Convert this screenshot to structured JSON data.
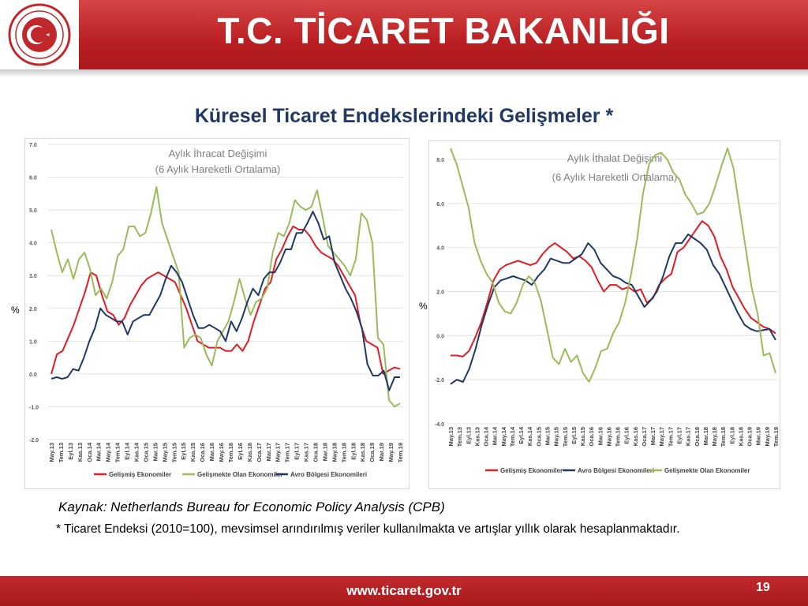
{
  "header": {
    "title": "T.C. TİCARET BAKANLIĞI"
  },
  "subtitle": "Küresel Ticaret Endekslerindeki Gelişmeler *",
  "colors": {
    "red": "#e31b23",
    "green": "#9bbb59",
    "navy": "#1f3864",
    "header": "#c0282b"
  },
  "chart_data": [
    {
      "type": "line",
      "title": "Aylık İhracat Değişimi",
      "subtitle": "(6 Aylık Hareketli Ortalama)",
      "ylabel": "%",
      "ylim": [
        -2,
        7
      ],
      "yticks": [
        "7.0",
        "6.0",
        "5.0",
        "4.0",
        "3.0",
        "2.0",
        "1.0",
        "0.0",
        "-1.0",
        "-2.0"
      ],
      "x_tick_labels": [
        "May.13",
        "Tem.13",
        "Eyl.13",
        "Kas.13",
        "Oca.14",
        "Mar.14",
        "May.14",
        "Tem.14",
        "Eyl.14",
        "Kas.14",
        "Oca.15",
        "Mar.15",
        "May.15",
        "Tem.15",
        "Eyl.15",
        "Kas.15",
        "Oca.16",
        "Mar.16",
        "May.16",
        "Tem.16",
        "Eyl.16",
        "Kas.16",
        "Oca.17",
        "Mar.17",
        "May.17",
        "Tem.17",
        "Eyl.17",
        "Kas.17",
        "Oca.18",
        "Mar.18",
        "May.18",
        "Tem.18",
        "Eyl.18",
        "Kas.18",
        "Oca.19",
        "Mar.19",
        "May.19",
        "Tem.19"
      ],
      "series": [
        {
          "name": "Gelişmiş Ekonomiler",
          "color": "#e31b23",
          "values": [
            0.0,
            0.6,
            0.7,
            1.1,
            1.5,
            2.0,
            2.5,
            3.1,
            3.0,
            2.4,
            1.9,
            1.8,
            1.5,
            1.7,
            2.1,
            2.4,
            2.7,
            2.9,
            3.0,
            3.1,
            3.0,
            2.9,
            2.8,
            2.4,
            2.0,
            1.5,
            1.0,
            0.9,
            0.8,
            0.8,
            0.8,
            0.7,
            0.7,
            0.9,
            0.7,
            1.0,
            1.6,
            2.1,
            2.6,
            2.8,
            3.5,
            3.8,
            4.2,
            4.5,
            4.4,
            4.4,
            4.2,
            3.9,
            3.7,
            3.6,
            3.5,
            3.3,
            3.0,
            2.7,
            2.4,
            1.5,
            1.0,
            0.9,
            0.8,
            0.0,
            0.1,
            0.2,
            0.15
          ]
        },
        {
          "name": "Gelişmekte Olan Ekonomiler",
          "color": "#9bbb59",
          "values": [
            4.4,
            3.7,
            3.1,
            3.5,
            2.9,
            3.5,
            3.7,
            3.2,
            2.4,
            2.6,
            2.3,
            2.8,
            3.6,
            3.8,
            4.5,
            4.5,
            4.2,
            4.3,
            4.9,
            5.7,
            4.6,
            4.1,
            3.6,
            3.1,
            0.8,
            1.1,
            1.2,
            1.1,
            0.6,
            0.25,
            1.0,
            1.3,
            1.6,
            2.2,
            2.9,
            2.3,
            1.8,
            2.2,
            2.3,
            2.6,
            3.7,
            4.3,
            4.2,
            4.6,
            5.3,
            5.1,
            5.0,
            5.1,
            5.6,
            4.8,
            3.9,
            3.7,
            3.5,
            3.3,
            3.0,
            3.5,
            4.9,
            4.7,
            4.0,
            1.1,
            0.9,
            -0.8,
            -1.0,
            -0.9
          ]
        },
        {
          "name": "Avro Bölgesi Ekonomileri",
          "color": "#1f3864",
          "values": [
            -0.15,
            -0.1,
            -0.15,
            -0.1,
            0.15,
            0.1,
            0.5,
            1.0,
            1.4,
            2.0,
            1.8,
            1.7,
            1.6,
            1.6,
            1.2,
            1.6,
            1.7,
            1.8,
            1.8,
            2.1,
            2.4,
            2.9,
            3.3,
            3.1,
            2.8,
            2.3,
            1.8,
            1.4,
            1.4,
            1.5,
            1.4,
            1.3,
            1.0,
            1.6,
            1.3,
            1.7,
            2.2,
            2.6,
            2.4,
            2.9,
            3.1,
            3.1,
            3.4,
            3.8,
            3.8,
            4.3,
            4.3,
            4.6,
            4.95,
            4.6,
            4.1,
            4.2,
            3.4,
            3.0,
            2.6,
            2.3,
            1.9,
            1.4,
            0.3,
            -0.05,
            -0.05,
            0.1,
            -0.5,
            -0.1,
            -0.1
          ]
        }
      ]
    },
    {
      "type": "line",
      "title": "Aylık İthalat Değişimi",
      "subtitle": "(6 Aylık Hareketli Ortalama)",
      "ylabel": "%",
      "ylim": [
        -4,
        8
      ],
      "yticks": [
        "8.0",
        "6.0",
        "4.0",
        "2.0",
        "0.0",
        "-2.0",
        "-4.0"
      ],
      "x_tick_labels": [
        "May.13",
        "Tem.13",
        "Eyl.13",
        "Kas.13",
        "Oca.14",
        "Mar.14",
        "May.14",
        "Tem.14",
        "Eyl.14",
        "Kas.14",
        "Oca.15",
        "Mar.15",
        "May.15",
        "Tem.15",
        "Eyl.15",
        "Kas.15",
        "Oca.16",
        "Mar.16",
        "May.16",
        "Tem.16",
        "Eyl.16",
        "Kas.16",
        "Oca.17",
        "Mar.17",
        "May.17",
        "Tem.17",
        "Eyl.17",
        "Kas.17",
        "Oca.18",
        "Mar.18",
        "May.18",
        "Tem.18",
        "Eyl.18",
        "Kas.18",
        "Oca.19",
        "Mar.19",
        "May.19",
        "Tem.19"
      ],
      "series": [
        {
          "name": "Gelişmiş Ekonomiler",
          "color": "#e31b23",
          "values": [
            -0.9,
            -0.9,
            -0.95,
            -0.7,
            -0.1,
            0.6,
            1.5,
            2.5,
            3.0,
            3.2,
            3.3,
            3.4,
            3.3,
            3.2,
            3.3,
            3.7,
            4.0,
            4.2,
            4.0,
            3.8,
            3.5,
            3.6,
            3.4,
            3.1,
            2.5,
            2.0,
            2.3,
            2.3,
            2.1,
            2.2,
            2.0,
            2.1,
            1.5,
            1.7,
            2.3,
            2.6,
            2.8,
            3.8,
            4.0,
            4.4,
            4.8,
            5.2,
            5.0,
            4.5,
            3.6,
            3.0,
            2.2,
            1.7,
            1.2,
            0.8,
            0.6,
            0.4,
            0.3,
            0.1
          ]
        },
        {
          "name": "Avro Bölgesi Ekonomileri",
          "color": "#1f3864",
          "values": [
            -2.2,
            -2.0,
            -2.1,
            -1.5,
            -0.6,
            0.5,
            1.4,
            2.2,
            2.5,
            2.6,
            2.7,
            2.6,
            2.5,
            2.3,
            2.7,
            3.0,
            3.5,
            3.4,
            3.3,
            3.3,
            3.5,
            3.7,
            4.2,
            3.9,
            3.3,
            3.0,
            2.7,
            2.6,
            2.4,
            2.3,
            1.8,
            1.3,
            1.6,
            2.0,
            2.7,
            3.6,
            4.2,
            4.2,
            4.6,
            4.4,
            4.2,
            3.9,
            3.2,
            2.8,
            2.2,
            1.6,
            1.0,
            0.5,
            0.3,
            0.2,
            0.25,
            0.3,
            -0.2
          ]
        },
        {
          "name": "Gelişmekte Olan Ekonomiler",
          "color": "#9bbb59",
          "values": [
            8.5,
            7.8,
            6.8,
            5.8,
            4.2,
            3.4,
            2.8,
            2.4,
            1.5,
            1.1,
            1.0,
            1.5,
            2.3,
            2.7,
            2.4,
            1.6,
            0.3,
            -1.0,
            -1.3,
            -0.6,
            -1.2,
            -0.9,
            -1.7,
            -2.1,
            -1.5,
            -0.7,
            -0.6,
            0.1,
            0.6,
            1.5,
            2.8,
            4.4,
            6.5,
            7.8,
            8.2,
            8.3,
            8.0,
            7.4,
            7.1,
            6.4,
            6.0,
            5.5,
            5.6,
            6.0,
            6.8,
            7.7,
            8.5,
            7.6,
            5.8,
            4.0,
            2.2,
            1.0,
            -0.9,
            -0.8,
            -1.7
          ]
        }
      ]
    }
  ],
  "axis_unit": "%",
  "source": "Kaynak: Netherlands Bureau for Economic Policy Analysis (CPB)",
  "note": "* Ticaret Endeksi (2010=100), mevsimsel arındırılmış veriler kullanılmakta ve artışlar yıllık olarak hesaplanmaktadır.",
  "footer": {
    "url": "www.ticaret.gov.tr",
    "page": "19"
  }
}
